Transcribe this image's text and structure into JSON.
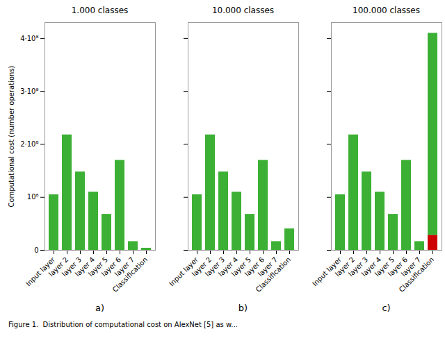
{
  "chart_data": [
    {
      "type": "bar",
      "title": "1.000 classes",
      "subtitle": "a)",
      "categories": [
        "Input layer",
        "layer 2",
        "layer 3",
        "layer 4",
        "layer 5",
        "layer 6",
        "layer 7",
        "Classification"
      ],
      "values": [
        105000000,
        218000000,
        148000000,
        110000000,
        68000000,
        170000000,
        16500000,
        4000000
      ],
      "color": "#3cb034",
      "ylabel": "Computational cost (number operations)",
      "ylim": [
        0,
        430000000
      ],
      "yticks": [
        0,
        {
          "value": 100000000,
          "label": "10⁸"
        },
        {
          "value": 200000000,
          "label": "2·10⁸"
        },
        {
          "value": 300000000,
          "label": "3·10⁸"
        },
        {
          "value": 400000000,
          "label": "4·10⁸"
        }
      ]
    },
    {
      "type": "bar",
      "title": "10.000 classes",
      "subtitle": "b)",
      "categories": [
        "Input layer",
        "layer 2",
        "layer 3",
        "layer 4",
        "layer 5",
        "layer 6",
        "layer 7",
        "Classification"
      ],
      "values": [
        105000000,
        218000000,
        148000000,
        110000000,
        68000000,
        170000000,
        16500000,
        40500000
      ],
      "color": "#3cb034",
      "ylim": [
        0,
        430000000
      ],
      "yticks": [
        0,
        {
          "value": 100000000,
          "label": "10⁸"
        },
        {
          "value": 200000000,
          "label": "2·10⁸"
        },
        {
          "value": 300000000,
          "label": "3·10⁸"
        },
        {
          "value": 400000000,
          "label": "4·10⁸"
        }
      ],
      "tick_labels": "x"
    },
    {
      "type": "bar",
      "title": "100.000 classes",
      "subtitle": "c)",
      "categories": [
        "Input layer",
        "layer 2",
        "layer 3",
        "layer 4",
        "layer 5",
        "layer 6",
        "layer 7",
        "Classification"
      ],
      "series": [
        {
          "color": "#cc0000",
          "values": [
            0,
            0,
            0,
            0,
            0,
            0,
            0,
            28500000
          ]
        },
        {
          "color": "#3cb034",
          "values": [
            105000000,
            218000000,
            148000000,
            110000000,
            68000000,
            170000000,
            16500000,
            381500000
          ]
        }
      ],
      "stacked": true,
      "ylim": [
        0,
        430000000
      ],
      "yticks": [
        0,
        {
          "value": 100000000,
          "label": "10⁸"
        },
        {
          "value": 200000000,
          "label": "2·10⁸"
        },
        {
          "value": 300000000,
          "label": "3·10⁸"
        },
        {
          "value": 400000000,
          "label": "4·10⁸"
        }
      ],
      "tick_labels": "x"
    }
  ],
  "caption": "Figure 1.  Distribution of computational cost on AlexNet [5] as w..."
}
